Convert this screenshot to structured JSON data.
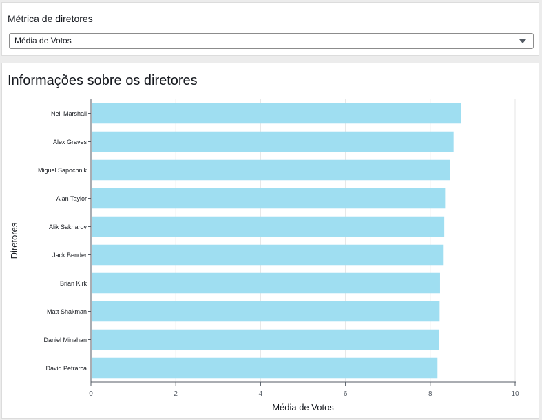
{
  "control": {
    "label": "Métrica de diretores",
    "selected_value": "Média de Votos"
  },
  "chart_data": {
    "type": "bar",
    "orientation": "horizontal",
    "title": "Informações sobre os diretores",
    "xlabel": "Média de Votos",
    "ylabel": "Diretores",
    "xlim": [
      0,
      10
    ],
    "xticks": [
      0,
      2,
      4,
      6,
      8,
      10
    ],
    "grid": true,
    "bar_color": "#9fdef1",
    "categories": [
      "Neil Marshall",
      "Alex Graves",
      "Miguel Sapochnik",
      "Alan Taylor",
      "Alik Sakharov",
      "Jack Bender",
      "Brian Kirk",
      "Matt Shakman",
      "Daniel Minahan",
      "David Petrarca"
    ],
    "values": [
      8.73,
      8.55,
      8.47,
      8.35,
      8.33,
      8.3,
      8.23,
      8.22,
      8.21,
      8.17
    ]
  }
}
